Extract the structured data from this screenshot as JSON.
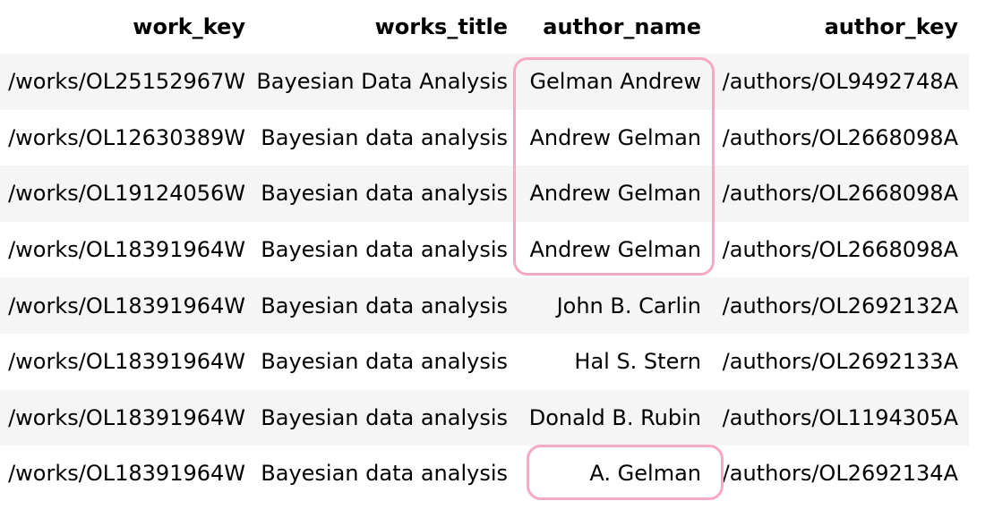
{
  "table": {
    "headers": [
      "work_key",
      "works_title",
      "author_name",
      "author_key"
    ],
    "rows": [
      [
        "/works/OL25152967W",
        "Bayesian Data Analysis",
        "Gelman Andrew",
        "/authors/OL9492748A"
      ],
      [
        "/works/OL12630389W",
        "Bayesian data analysis",
        "Andrew Gelman",
        "/authors/OL2668098A"
      ],
      [
        "/works/OL19124056W",
        "Bayesian data analysis",
        "Andrew Gelman",
        "/authors/OL2668098A"
      ],
      [
        "/works/OL18391964W",
        "Bayesian data analysis",
        "Andrew Gelman",
        "/authors/OL2668098A"
      ],
      [
        "/works/OL18391964W",
        "Bayesian data analysis",
        "John B. Carlin",
        "/authors/OL2692132A"
      ],
      [
        "/works/OL18391964W",
        "Bayesian data analysis",
        "Hal S. Stern",
        "/authors/OL2692133A"
      ],
      [
        "/works/OL18391964W",
        "Bayesian data analysis",
        "Donald B. Rubin",
        "/authors/OL1194305A"
      ],
      [
        "/works/OL18391964W",
        "Bayesian data analysis",
        "A. Gelman",
        "/authors/OL2692134A"
      ]
    ]
  },
  "colors": {
    "stripe": "#f5f5f5",
    "highlight": "#f7a8c4"
  }
}
